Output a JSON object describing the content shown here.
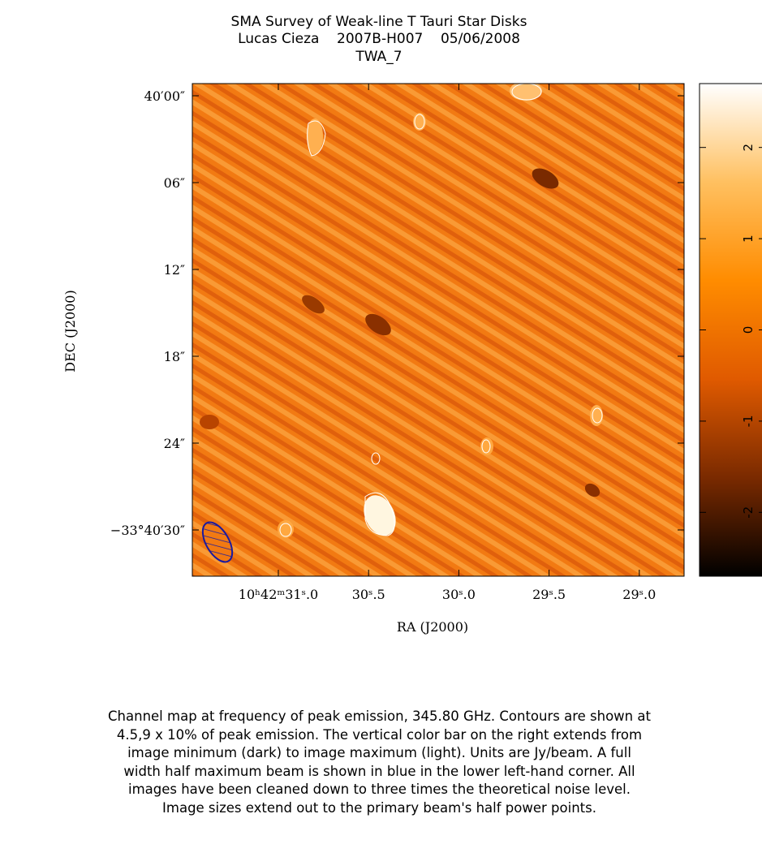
{
  "chart_data": {
    "type": "image",
    "title": [
      "SMA Survey of Weak-line T Tauri Star Disks",
      "Lucas Cieza    2007B-H007    05/06/2008",
      "TWA_7"
    ],
    "xlabel": "RA (J2000)",
    "ylabel": "DEC (J2000)",
    "xtick_labels": [
      "10ʰ42ᵐ31ˢ.0",
      "30ˢ.5",
      "30ˢ.0",
      "29ˢ.5",
      "29ˢ.0"
    ],
    "ytick_labels": [
      "40′00″",
      "06″",
      "12″",
      "18″",
      "24″",
      "−33°40′30″"
    ],
    "colorbar": {
      "ylim": [
        -2.7,
        2.7
      ],
      "yticks": [
        -2,
        -1,
        0,
        1,
        2
      ],
      "colormap": [
        "#000000",
        "#7a2a00",
        "#e05a00",
        "#ff8c00",
        "#ffc060",
        "#ffffff"
      ]
    },
    "caption": [
      "Channel map at frequency of peak emission, 345.80 GHz.  Contours are shown at",
      "4.5,9 x 10% of peak emission.  The vertical color bar on the right extends from",
      "image minimum (dark) to image maximum (light).  Units are Jy/beam.  A full",
      "width half maximum beam is shown in blue in the lower left-hand corner.  All",
      "images have been cleaned down to three times the theoretical noise level.",
      "Image sizes extend out to the primary beam's half power points."
    ]
  }
}
